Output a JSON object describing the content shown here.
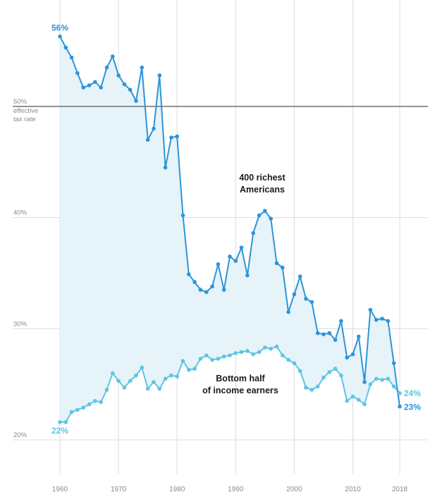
{
  "chart_data": {
    "type": "line",
    "x_ticks": [
      "1960",
      "1970",
      "1980",
      "1990",
      "2000",
      "2010",
      "2018"
    ],
    "y_ticks": [
      {
        "value": 20,
        "label": "20%"
      },
      {
        "value": 30,
        "label": "30%"
      },
      {
        "value": 40,
        "label": "40%"
      },
      {
        "value": 50,
        "label": "50%",
        "extra": [
          "effective",
          "tax rate"
        ]
      }
    ],
    "xlim": [
      1960,
      2018
    ],
    "ylim": [
      20,
      57
    ],
    "reference_line": 50,
    "grid": true,
    "area_between_series": true,
    "colors": {
      "richest": "#2d95d8",
      "bottom": "#5cc6e3",
      "fill": "#e6f3f9",
      "grid": "#dcdcdc",
      "reference": "#555555",
      "text": "#8a8a8a"
    },
    "x": [
      1960,
      1961,
      1962,
      1963,
      1964,
      1965,
      1966,
      1967,
      1968,
      1969,
      1970,
      1971,
      1972,
      1973,
      1974,
      1975,
      1976,
      1977,
      1978,
      1979,
      1980,
      1981,
      1982,
      1983,
      1984,
      1985,
      1986,
      1987,
      1988,
      1989,
      1990,
      1991,
      1992,
      1993,
      1994,
      1995,
      1996,
      1997,
      1998,
      1999,
      2000,
      2001,
      2002,
      2003,
      2004,
      2005,
      2006,
      2007,
      2008,
      2009,
      2010,
      2011,
      2012,
      2013,
      2014,
      2015,
      2016,
      2017,
      2018
    ],
    "series": [
      {
        "name": "400 richest Americans",
        "name_lines": [
          "400 richest",
          "Americans"
        ],
        "values": [
          56.3,
          55.3,
          54.4,
          53.0,
          51.7,
          51.9,
          52.2,
          51.7,
          53.5,
          54.5,
          52.8,
          52.0,
          51.5,
          50.5,
          53.5,
          47.0,
          48.0,
          52.8,
          44.5,
          47.2,
          47.3,
          40.2,
          34.9,
          34.2,
          33.5,
          33.3,
          33.8,
          35.8,
          33.5,
          36.5,
          36.1,
          37.3,
          34.8,
          38.6,
          40.2,
          40.6,
          39.9,
          35.9,
          35.5,
          31.5,
          33.1,
          34.7,
          32.7,
          32.4,
          29.6,
          29.5,
          29.6,
          29.0,
          30.7,
          27.4,
          27.7,
          29.3,
          25.2,
          31.7,
          30.8,
          30.9,
          30.7,
          26.9,
          23.0
        ],
        "start_label": "56%",
        "end_label": "23%"
      },
      {
        "name": "Bottom half of income earners",
        "name_lines": [
          "Bottom half",
          "of income earners"
        ],
        "values": [
          21.6,
          21.6,
          22.5,
          22.7,
          22.9,
          23.2,
          23.5,
          23.4,
          24.5,
          26.0,
          25.3,
          24.7,
          25.3,
          25.8,
          26.5,
          24.6,
          25.2,
          24.6,
          25.5,
          25.8,
          25.7,
          27.1,
          26.3,
          26.4,
          27.3,
          27.6,
          27.2,
          27.3,
          27.5,
          27.6,
          27.8,
          27.9,
          28.0,
          27.7,
          27.9,
          28.3,
          28.2,
          28.4,
          27.6,
          27.2,
          26.9,
          26.2,
          24.7,
          24.5,
          24.8,
          25.6,
          26.1,
          26.4,
          25.8,
          23.5,
          23.9,
          23.6,
          23.2,
          25.0,
          25.5,
          25.4,
          25.5,
          24.8,
          24.2
        ],
        "start_label": "22%",
        "end_label": "24%"
      }
    ]
  }
}
